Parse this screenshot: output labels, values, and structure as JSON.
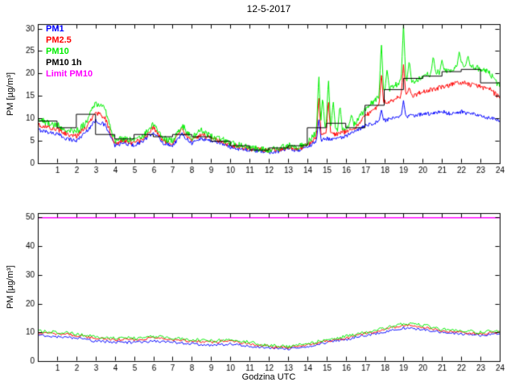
{
  "figure": {
    "title": "12-5-2017",
    "xlabel": "Godzina UTC",
    "ylabel": "PM [µg/m³]"
  },
  "legend": [
    {
      "label": "PM1",
      "color": "#0000ff"
    },
    {
      "label": "PM2.5",
      "color": "#ff0000"
    },
    {
      "label": "PM10",
      "color": "#00ee00"
    },
    {
      "label": "PM10 1h",
      "color": "#000000"
    },
    {
      "label": "Limit PM10",
      "color": "#ff00ff"
    }
  ],
  "chart_data": [
    {
      "type": "line",
      "title": "12-5-2017",
      "xlabel": "",
      "ylabel": "PM [µg/m³]",
      "xlim": [
        0,
        24
      ],
      "ylim": [
        0,
        31
      ],
      "xticks": [
        1,
        2,
        3,
        4,
        5,
        6,
        7,
        8,
        9,
        10,
        11,
        12,
        13,
        14,
        15,
        16,
        17,
        18,
        19,
        20,
        21,
        22,
        23,
        24
      ],
      "yticks": [
        0,
        5,
        10,
        15,
        20,
        25,
        30
      ],
      "grid": false,
      "legend_position": "top-left",
      "series": [
        {
          "name": "PM1",
          "color": "#0000ff",
          "kind": "noisy",
          "x_step": 0.5,
          "noise": 0.45,
          "y": [
            7.5,
            7,
            6.5,
            5.5,
            5,
            7,
            9.5,
            8.5,
            4,
            4.5,
            4,
            5,
            7,
            4.5,
            4,
            6.5,
            4.5,
            5.5,
            5,
            4.5,
            3.6,
            3.2,
            2.9,
            2.7,
            2.5,
            2.7,
            3.2,
            2.9,
            3.6,
            5,
            5.5,
            5.5,
            6,
            7,
            8.5,
            9,
            9.5,
            10,
            10.5,
            10.5,
            11,
            11,
            11.5,
            11,
            11.5,
            11,
            10.5,
            10,
            9.5
          ],
          "spikes": [
            [
              14.6,
              10
            ],
            [
              17.85,
              12
            ],
            [
              19.0,
              14
            ]
          ]
        },
        {
          "name": "PM2.5",
          "color": "#ff0000",
          "kind": "noisy",
          "x_step": 0.5,
          "noise": 0.55,
          "y": [
            8.5,
            8,
            7.5,
            6.5,
            6,
            8,
            11.5,
            10,
            4.5,
            5,
            4.5,
            5.5,
            8,
            5,
            4.5,
            7.5,
            5,
            6.5,
            5.5,
            5,
            4,
            3.6,
            3.2,
            3,
            2.8,
            3,
            3.6,
            3.2,
            4,
            6,
            6.5,
            6.5,
            7,
            8,
            10.5,
            12,
            13.5,
            14,
            15.5,
            15,
            16,
            16.5,
            17,
            17.5,
            18,
            17.5,
            17,
            16.5,
            14.5
          ],
          "spikes": [
            [
              14.6,
              15
            ],
            [
              15.1,
              14
            ],
            [
              17.85,
              20
            ],
            [
              19.0,
              22
            ],
            [
              19.3,
              17
            ]
          ]
        },
        {
          "name": "PM10",
          "color": "#00ee00",
          "kind": "noisy",
          "x_step": 0.5,
          "noise": 0.7,
          "y": [
            10,
            9,
            8.5,
            7.5,
            7,
            9,
            13.5,
            12,
            5,
            5.5,
            5,
            6,
            9,
            5.5,
            5,
            8.5,
            5.5,
            7.5,
            6,
            5.5,
            4.5,
            4,
            3.5,
            3.2,
            3,
            3.2,
            4,
            3.5,
            4.5,
            7,
            8,
            7.5,
            8,
            9,
            12,
            14,
            16,
            17,
            19,
            18,
            19.5,
            20,
            20.5,
            21,
            22,
            21.5,
            21,
            20,
            17
          ],
          "spikes": [
            [
              14.6,
              20
            ],
            [
              14.8,
              15
            ],
            [
              15.1,
              19
            ],
            [
              15.35,
              14
            ],
            [
              15.7,
              13
            ],
            [
              16.3,
              11
            ],
            [
              17.85,
              27
            ],
            [
              18.15,
              21
            ],
            [
              19.0,
              31
            ],
            [
              19.3,
              23
            ],
            [
              20.55,
              24
            ],
            [
              21.0,
              23
            ],
            [
              21.9,
              25
            ],
            [
              22.35,
              24
            ]
          ]
        },
        {
          "name": "PM10 1h",
          "color": "#000000",
          "kind": "step",
          "y": [
            9.5,
            8,
            11,
            6.5,
            5.5,
            6.5,
            6,
            6.5,
            6,
            5,
            4,
            3,
            3.5,
            4,
            8,
            9,
            8,
            13,
            16.5,
            19,
            19.5,
            20.5,
            21,
            18
          ]
        },
        {
          "name": "Limit PM10",
          "color": "#ff00ff",
          "kind": "const",
          "value": 50,
          "width": 1.5
        }
      ]
    },
    {
      "type": "line",
      "title": "",
      "xlabel": "Godzina UTC",
      "ylabel": "PM [µg/m³]",
      "xlim": [
        0,
        24
      ],
      "ylim": [
        0,
        51.5
      ],
      "xticks": [
        1,
        2,
        3,
        4,
        5,
        6,
        7,
        8,
        9,
        10,
        11,
        12,
        13,
        14,
        15,
        16,
        17,
        18,
        19,
        20,
        21,
        22,
        23,
        24
      ],
      "yticks": [
        0,
        10,
        20,
        30,
        40,
        50
      ],
      "grid": false,
      "series": [
        {
          "name": "PM1",
          "color": "#0000ff",
          "kind": "noisy",
          "x_step": 1,
          "noise": 0.45,
          "y": [
            9,
            8.5,
            8,
            7,
            6.5,
            6.5,
            7,
            6.5,
            6,
            5.5,
            6,
            5.2,
            4.5,
            4.2,
            5,
            6.5,
            7.5,
            9,
            10,
            11.5,
            11,
            10,
            9.5,
            9,
            9.5
          ]
        },
        {
          "name": "PM2.5",
          "color": "#ff0000",
          "kind": "noisy",
          "x_step": 1,
          "noise": 0.5,
          "y": [
            10,
            9.5,
            9,
            8,
            7.5,
            7.5,
            8,
            7.5,
            7,
            6.5,
            7,
            6,
            5,
            4.7,
            5.5,
            7,
            8,
            9.5,
            11,
            12.5,
            12,
            10.5,
            10,
            9.5,
            10
          ]
        },
        {
          "name": "PM10",
          "color": "#00ee00",
          "kind": "noisy",
          "x_step": 1,
          "noise": 0.6,
          "y": [
            10.5,
            10,
            9.5,
            8.5,
            8,
            8,
            8.5,
            8,
            7.5,
            7,
            7.5,
            6.5,
            5.5,
            5,
            6,
            7.5,
            8.5,
            10,
            11.5,
            13,
            12.5,
            11,
            10.5,
            10,
            10.5
          ]
        },
        {
          "name": "Limit PM10",
          "color": "#ff00ff",
          "kind": "const",
          "value": 50,
          "width": 1.5
        }
      ]
    }
  ]
}
